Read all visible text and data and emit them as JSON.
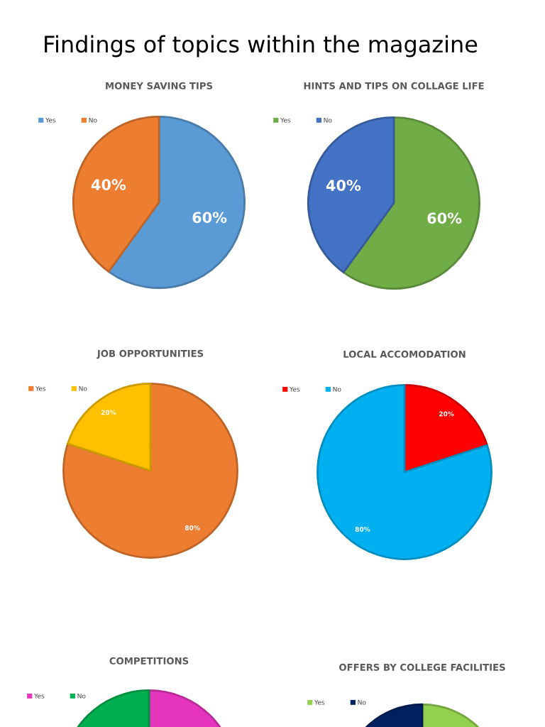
{
  "chart_data": [
    {
      "type": "other",
      "title": "Findings of topics within the magazine"
    },
    {
      "type": "pie",
      "title": "MONEY SAVING TIPS",
      "categories": [
        "Yes",
        "No"
      ],
      "values": [
        60,
        40
      ],
      "colors": [
        "#5b9bd5",
        "#ed7d31"
      ],
      "value_labels": [
        "60%",
        "40%"
      ],
      "legend": "top left"
    },
    {
      "type": "pie",
      "title": "HINTS AND TIPS ON COLLAGE LIFE",
      "categories": [
        "Yes",
        "No"
      ],
      "values": [
        60,
        40
      ],
      "colors": [
        "#70ad47",
        "#4472c4"
      ],
      "value_labels": [
        "60%",
        "40%"
      ],
      "legend": "top left"
    },
    {
      "type": "pie",
      "title": "JOB OPPORTUNITIES",
      "categories": [
        "Yes",
        "No"
      ],
      "values": [
        80,
        20
      ],
      "colors": [
        "#ed7d31",
        "#ffc000"
      ],
      "value_labels": [
        "80%",
        "20%"
      ],
      "legend": "top left"
    },
    {
      "type": "pie",
      "title": "LOCAL ACCOMODATION",
      "categories": [
        "Yes",
        "No"
      ],
      "values": [
        20,
        80
      ],
      "colors": [
        "#ff0000",
        "#00b0f0"
      ],
      "value_labels": [
        "20%",
        "80%"
      ],
      "legend": "top left"
    },
    {
      "type": "pie",
      "title": "COMPETITIONS",
      "categories": [
        "Yes",
        "No"
      ],
      "values": [
        50,
        50
      ],
      "colors": [
        "#e535be",
        "#00b050"
      ],
      "legend": "top left"
    },
    {
      "type": "pie",
      "title": "OFFERS BY COLLEGE FACILITIES",
      "categories": [
        "Yes",
        "No"
      ],
      "values": [
        50,
        50
      ],
      "colors": [
        "#92d050",
        "#002060"
      ],
      "legend": "top left"
    }
  ]
}
